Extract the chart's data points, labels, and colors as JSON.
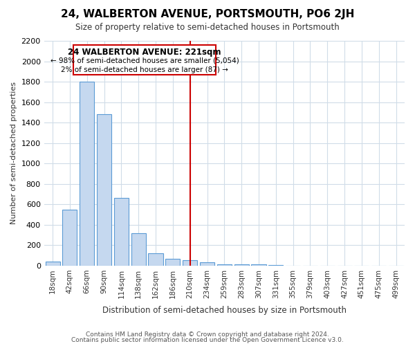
{
  "title": "24, WALBERTON AVENUE, PORTSMOUTH, PO6 2JH",
  "subtitle": "Size of property relative to semi-detached houses in Portsmouth",
  "xlabel": "Distribution of semi-detached houses by size in Portsmouth",
  "ylabel": "Number of semi-detached properties",
  "annotation_title": "24 WALBERTON AVENUE: 221sqm",
  "annotation_line1": "← 98% of semi-detached houses are smaller (5,054)",
  "annotation_line2": "2% of semi-detached houses are larger (87) →",
  "footer1": "Contains HM Land Registry data © Crown copyright and database right 2024.",
  "footer2": "Contains public sector information licensed under the Open Government Licence v3.0.",
  "bar_categories": [
    "18sqm",
    "42sqm",
    "66sqm",
    "90sqm",
    "114sqm",
    "138sqm",
    "162sqm",
    "186sqm",
    "210sqm",
    "234sqm",
    "259sqm",
    "283sqm",
    "307sqm",
    "331sqm",
    "355sqm",
    "379sqm",
    "403sqm",
    "427sqm",
    "451sqm",
    "475sqm",
    "499sqm"
  ],
  "bar_values": [
    40,
    550,
    1800,
    1480,
    660,
    320,
    120,
    65,
    55,
    30,
    10,
    10,
    10,
    5,
    0,
    0,
    0,
    0,
    0,
    0,
    0
  ],
  "vline_bin_index": 8,
  "bar_color": "#c5d8ef",
  "bar_edge_color": "#5b9bd5",
  "annotation_box_facecolor": "#ffffff",
  "annotation_box_edgecolor": "#cc0000",
  "vline_color": "#cc0000",
  "ylim": [
    0,
    2200
  ],
  "yticks": [
    0,
    200,
    400,
    600,
    800,
    1000,
    1200,
    1400,
    1600,
    1800,
    2000,
    2200
  ],
  "background_color": "#ffffff",
  "plot_background": "#ffffff",
  "grid_color": "#d0dce8"
}
